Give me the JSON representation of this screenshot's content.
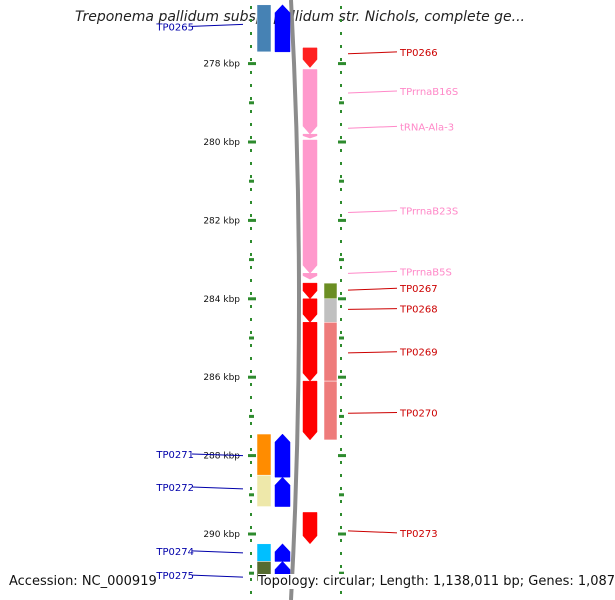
{
  "title": "Treponema pallidum subsp. pallidum str. Nichols, complete ge...",
  "scale": {
    "unit": "kbp",
    "ticks": [
      {
        "kbp": 278,
        "label": "278 kbp"
      },
      {
        "kbp": 280,
        "label": "280 kbp"
      },
      {
        "kbp": 282,
        "label": "282 kbp"
      },
      {
        "kbp": 284,
        "label": "284 kbp"
      },
      {
        "kbp": 286,
        "label": "286 kbp"
      },
      {
        "kbp": 288,
        "label": "288 kbp"
      },
      {
        "kbp": 290,
        "label": "290 kbp"
      }
    ]
  },
  "reverse_strand": {
    "features": [
      {
        "start": 277.6,
        "end": 278.1,
        "color": "#ff2020",
        "shape": "arrow"
      },
      {
        "start": 278.15,
        "end": 279.8,
        "color": "#ff99cc",
        "shape": "arrow"
      },
      {
        "start": 279.8,
        "end": 279.9,
        "color": "#ff99cc",
        "shape": "arrow"
      },
      {
        "start": 279.95,
        "end": 283.35,
        "color": "#ff99cc",
        "shape": "arrow"
      },
      {
        "start": 283.35,
        "end": 283.5,
        "color": "#ff99cc",
        "shape": "arrow"
      },
      {
        "start": 283.6,
        "end": 284.0,
        "color": "#ff0000",
        "shape": "arrow"
      },
      {
        "start": 284.0,
        "end": 284.6,
        "color": "#ff0000",
        "shape": "arrow"
      },
      {
        "start": 284.6,
        "end": 286.1,
        "color": "#ff0000",
        "shape": "arrow"
      },
      {
        "start": 286.1,
        "end": 287.6,
        "color": "#ff0000",
        "shape": "arrow"
      },
      {
        "start": 289.45,
        "end": 290.25,
        "color": "#ff0000",
        "shape": "arrow"
      }
    ],
    "cog": [
      {
        "start": 283.6,
        "end": 284.0,
        "color": "#6b8e23"
      },
      {
        "start": 284.0,
        "end": 284.6,
        "color": "#c0c0c0"
      },
      {
        "start": 284.6,
        "end": 286.1,
        "color": "#ee7b7b"
      },
      {
        "start": 286.1,
        "end": 287.6,
        "color": "#ee7b7b"
      }
    ],
    "labels": [
      {
        "text": "TP0266",
        "y_kbp": 277.7,
        "feature_kbp": 277.75,
        "color": "#cc0000"
      },
      {
        "text": "TPrrnaB16S",
        "y_kbp": 278.7,
        "feature_kbp": 278.75,
        "color": "#ff88c8"
      },
      {
        "text": "tRNA-Ala-3",
        "y_kbp": 279.6,
        "feature_kbp": 279.65,
        "color": "#ff88c8"
      },
      {
        "text": "TPrrnaB23S",
        "y_kbp": 281.75,
        "feature_kbp": 281.8,
        "color": "#ff88c8"
      },
      {
        "text": "TPrrnaB5S",
        "y_kbp": 283.3,
        "feature_kbp": 283.35,
        "color": "#ff88c8"
      },
      {
        "text": "TP0267",
        "y_kbp": 283.73,
        "feature_kbp": 283.78,
        "color": "#cc0000"
      },
      {
        "text": "TP0268",
        "y_kbp": 284.25,
        "feature_kbp": 284.27,
        "color": "#cc0000"
      },
      {
        "text": "TP0269",
        "y_kbp": 285.35,
        "feature_kbp": 285.38,
        "color": "#cc0000"
      },
      {
        "text": "TP0270",
        "y_kbp": 286.9,
        "feature_kbp": 286.92,
        "color": "#cc0000"
      },
      {
        "text": "TP0273",
        "y_kbp": 289.97,
        "feature_kbp": 289.92,
        "color": "#cc0000"
      }
    ]
  },
  "forward_strand": {
    "features": [
      {
        "start": 276.5,
        "end": 277.7,
        "color": "#0000ff",
        "shape": "arrow"
      },
      {
        "start": 287.45,
        "end": 288.55,
        "color": "#0000ff",
        "shape": "arrow"
      },
      {
        "start": 288.55,
        "end": 289.3,
        "color": "#0000ff",
        "shape": "arrow"
      },
      {
        "start": 290.25,
        "end": 290.7,
        "color": "#0000ff",
        "shape": "arrow"
      },
      {
        "start": 290.7,
        "end": 291.2,
        "color": "#0000ff",
        "shape": "arrow"
      }
    ],
    "cog": [
      {
        "start": 276.5,
        "end": 277.7,
        "color": "#4682b4"
      },
      {
        "start": 287.45,
        "end": 288.5,
        "color": "#ff8c00"
      },
      {
        "start": 288.5,
        "end": 289.3,
        "color": "#eee8aa"
      },
      {
        "start": 290.25,
        "end": 290.7,
        "color": "#00bfff"
      },
      {
        "start": 290.7,
        "end": 291.2,
        "color": "#556b2f"
      }
    ],
    "labels": [
      {
        "text": "TP0265",
        "y_kbp": 277.05,
        "feature_kbp": 277.0,
        "color": "#0000aa"
      },
      {
        "text": "TP0271",
        "y_kbp": 287.96,
        "feature_kbp": 288.0,
        "color": "#0000aa"
      },
      {
        "text": "TP0272",
        "y_kbp": 288.8,
        "feature_kbp": 288.85,
        "color": "#0000aa"
      },
      {
        "text": "TP0274",
        "y_kbp": 290.43,
        "feature_kbp": 290.48,
        "color": "#0000aa"
      },
      {
        "text": "TP0275",
        "y_kbp": 291.05,
        "feature_kbp": 291.1,
        "color": "#0000aa"
      }
    ]
  },
  "footer": {
    "accession": "Accession: NC_000919",
    "summary": "Topology: circular; Length: 1,138,011 bp; Genes: 1,087"
  }
}
